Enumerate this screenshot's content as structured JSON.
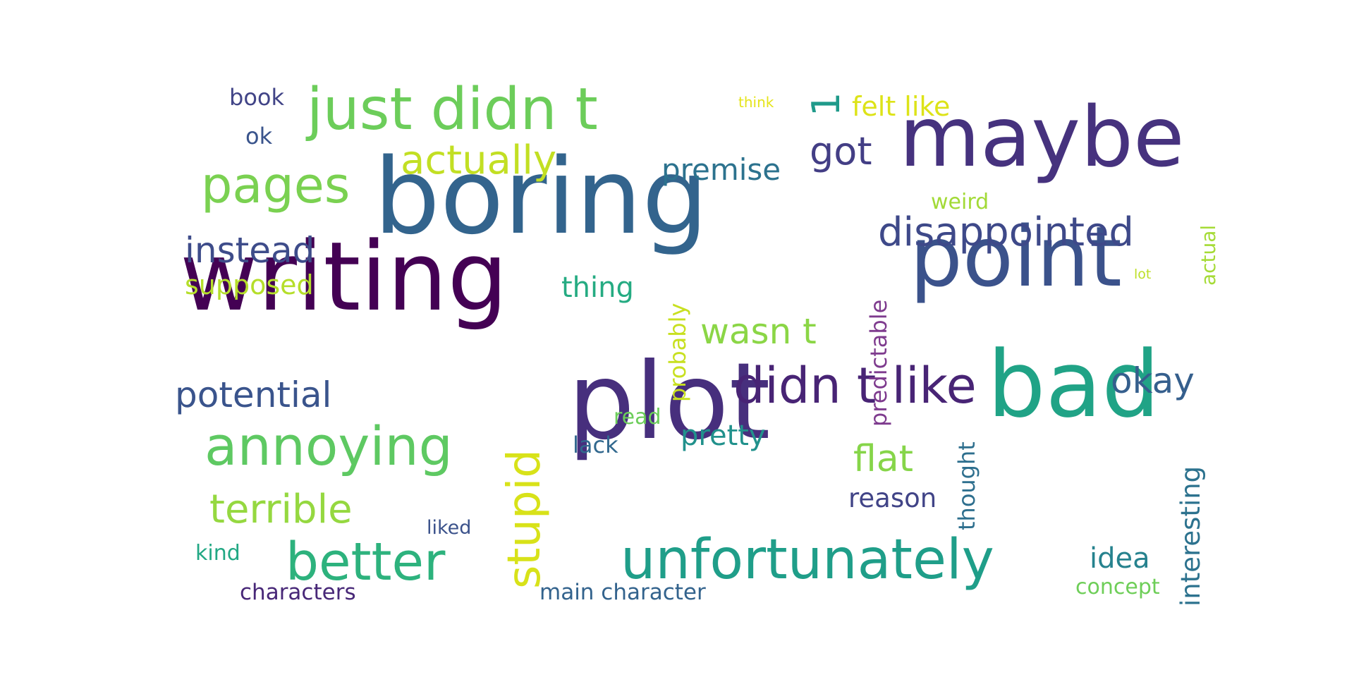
{
  "words": [
    {
      "text": "boring",
      "color": "#33648d"
    },
    {
      "text": "writing",
      "color": "#440154"
    },
    {
      "text": "plot",
      "color": "#472f7d"
    },
    {
      "text": "maybe",
      "color": "#46327e"
    },
    {
      "text": "point",
      "color": "#3b528b"
    },
    {
      "text": "bad",
      "color": "#20a386"
    },
    {
      "text": "just didn t",
      "color": "#6ccd5a"
    },
    {
      "text": "didn t like",
      "color": "#482475"
    },
    {
      "text": "unfortunately",
      "color": "#1f9e89"
    },
    {
      "text": "annoying",
      "color": "#5ec962"
    },
    {
      "text": "pages",
      "color": "#7ad151"
    },
    {
      "text": "better",
      "color": "#2db27d"
    },
    {
      "text": "stupid",
      "color": "#d8e219"
    },
    {
      "text": "actually",
      "color": "#c2df23"
    },
    {
      "text": "disappointed",
      "color": "#3e4989"
    },
    {
      "text": "terrible",
      "color": "#95d840"
    },
    {
      "text": "instead",
      "color": "#3e4c8a"
    },
    {
      "text": "potential",
      "color": "#3a548c"
    },
    {
      "text": "wasn t",
      "color": "#8bd646"
    },
    {
      "text": "flat",
      "color": "#86d549"
    },
    {
      "text": "okay",
      "color": "#355f8d"
    },
    {
      "text": "got",
      "color": "#433e85"
    },
    {
      "text": "felt like",
      "color": "#dde318"
    },
    {
      "text": "premise",
      "color": "#2c728e"
    },
    {
      "text": "supposed",
      "color": "#b5de2b"
    },
    {
      "text": "thing",
      "color": "#25ab82"
    },
    {
      "text": "pretty",
      "color": "#21918c"
    },
    {
      "text": "idea",
      "color": "#26828e"
    },
    {
      "text": "reason",
      "color": "#414487"
    },
    {
      "text": "interesting",
      "color": "#2c728e"
    },
    {
      "text": "predictable",
      "color": "#7e3b8e"
    },
    {
      "text": "probably",
      "color": "#c8e020"
    },
    {
      "text": "thought",
      "color": "#2e6f8e"
    },
    {
      "text": "characters",
      "color": "#482878"
    },
    {
      "text": "main character",
      "color": "#33638d"
    },
    {
      "text": "concept",
      "color": "#6ece58"
    },
    {
      "text": "weird",
      "color": "#a2da37"
    },
    {
      "text": "actual",
      "color": "#a5db36"
    },
    {
      "text": "book",
      "color": "#414487"
    },
    {
      "text": "ok",
      "color": "#3a548c"
    },
    {
      "text": "lack",
      "color": "#31688e"
    },
    {
      "text": "read",
      "color": "#6ccd5a"
    },
    {
      "text": "kind",
      "color": "#22a884"
    },
    {
      "text": "liked",
      "color": "#3b528b"
    },
    {
      "text": "think",
      "color": "#e5e419"
    },
    {
      "text": "lot",
      "color": "#bddf26"
    },
    {
      "text": "1",
      "color": "#1f9a8a"
    }
  ]
}
